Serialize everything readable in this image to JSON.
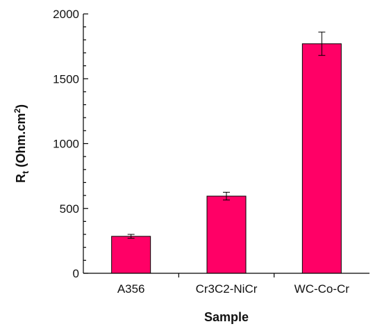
{
  "chart_data": {
    "type": "bar",
    "categories": [
      "A356",
      "Cr3C2-NiCr",
      "WC-Co-Cr"
    ],
    "values": [
      285,
      595,
      1770
    ],
    "errors": [
      15,
      30,
      90
    ],
    "xlabel": "Sample",
    "ylabel": {
      "main": "R",
      "sub": "t",
      "unit": " (Ohm.cm",
      "sup": "2",
      "close": ")"
    },
    "ylim": [
      0,
      2000
    ],
    "yticks": [
      0,
      500,
      1000,
      1500,
      2000
    ],
    "ytick_labels": [
      "0",
      "500",
      "1000",
      "1500",
      "2000"
    ],
    "bar_color": "#ff0066",
    "grid": false,
    "legend": "none"
  }
}
